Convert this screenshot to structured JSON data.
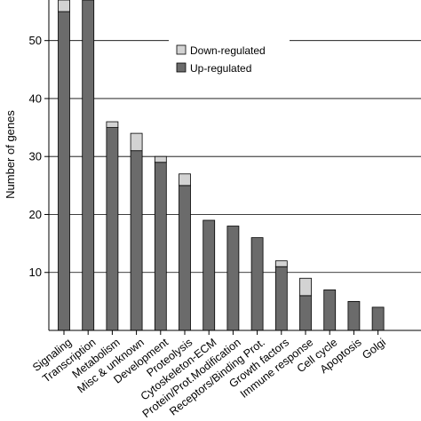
{
  "colors": {
    "up": "#6b6b6b",
    "down": "#d3d3d3",
    "axis": "#000000",
    "grid": "#000000"
  },
  "chart_data": {
    "type": "bar",
    "stacked": true,
    "title": "",
    "xlabel": "",
    "ylabel": "Number of genes",
    "ylim": [
      0,
      57
    ],
    "yticks": [
      10,
      20,
      30,
      40,
      50
    ],
    "grid": "horizontal",
    "legend_position": "top-center",
    "categories": [
      "Signaling",
      "Transcription",
      "Metabolism",
      "Misc & unknown",
      "Development",
      "Proteolysis",
      "Cytoskeleton-ECM",
      "Protein/Prot.Modification",
      "Receptors/Binding Prot.",
      "Growth factors",
      "Immune response",
      "Cell cycle",
      "Apoptosis",
      "Golgi"
    ],
    "series": [
      {
        "name": "Up-regulated",
        "values": [
          55,
          57,
          35,
          31,
          29,
          25,
          19,
          18,
          16,
          11,
          6,
          7,
          5,
          4
        ]
      },
      {
        "name": "Down-regulated",
        "values": [
          2,
          0,
          1,
          3,
          1,
          2,
          0,
          0,
          0,
          1,
          3,
          0,
          0,
          0
        ]
      }
    ],
    "legend": [
      "Down-regulated",
      "Up-regulated"
    ]
  }
}
